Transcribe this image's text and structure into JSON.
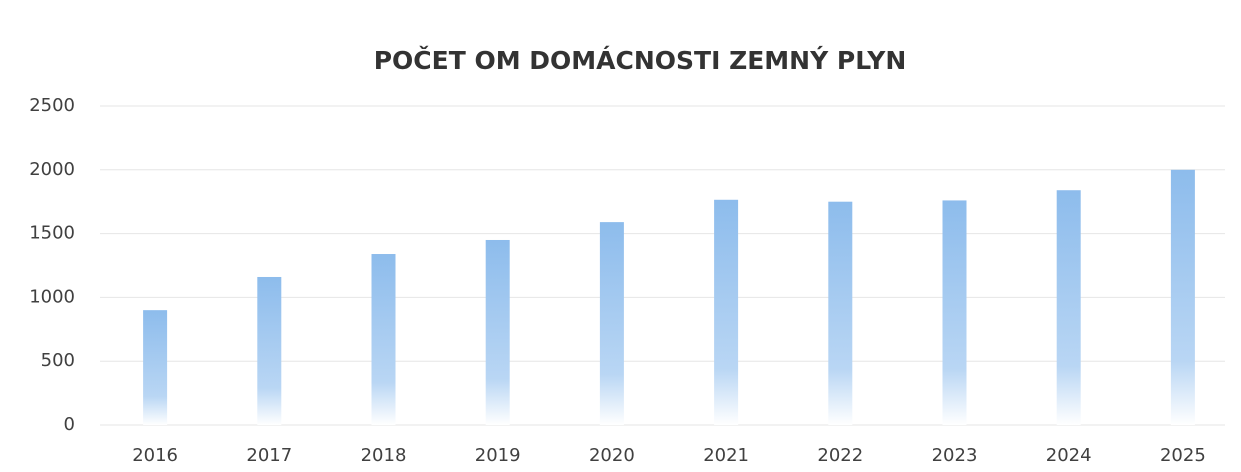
{
  "chart_data": {
    "type": "bar",
    "title": "POČET OM DOMÁCNOSTI ZEMNÝ PLYN",
    "categories": [
      "2016",
      "2017",
      "2018",
      "2019",
      "2020",
      "2021",
      "2022",
      "2023",
      "2024",
      "2025"
    ],
    "values": [
      900,
      1160,
      1340,
      1450,
      1590,
      1765,
      1750,
      1760,
      1840,
      2000
    ],
    "color": "#8dbcec",
    "ylim": [
      0,
      2500
    ],
    "yticks": [
      0,
      500,
      1000,
      1500,
      2000,
      2500
    ],
    "grid": true
  }
}
